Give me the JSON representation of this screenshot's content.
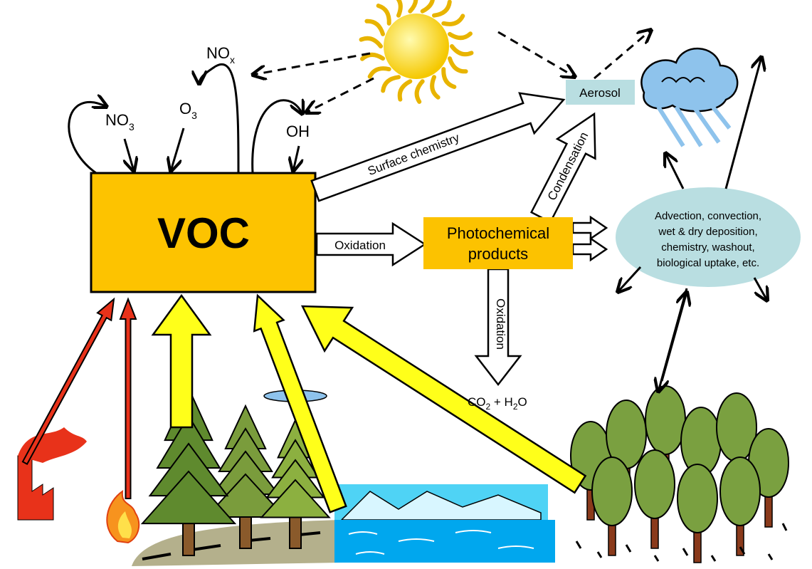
{
  "nodes": {
    "voc": "VOC",
    "nox": {
      "text": "NO",
      "sub": "x"
    },
    "no3": {
      "text": "NO",
      "sub": "3"
    },
    "o3": {
      "text": "O",
      "sub": "3"
    },
    "oh": "OH",
    "aerosol": "Aerosol",
    "photochemical": [
      "Photochemical",
      "products"
    ],
    "transport": [
      "Advection, convection,",
      "wet & dry deposition,",
      "chemistry,  washout,",
      "biological uptake, etc."
    ],
    "co2_h2o": [
      "CO",
      "2",
      " + H",
      "2",
      "O"
    ]
  },
  "edges": {
    "surface_chemistry": "Surface chemistry",
    "condensation": "Condensation",
    "oxidation_voc": "Oxidation",
    "oxidation_products": "Oxidation"
  }
}
